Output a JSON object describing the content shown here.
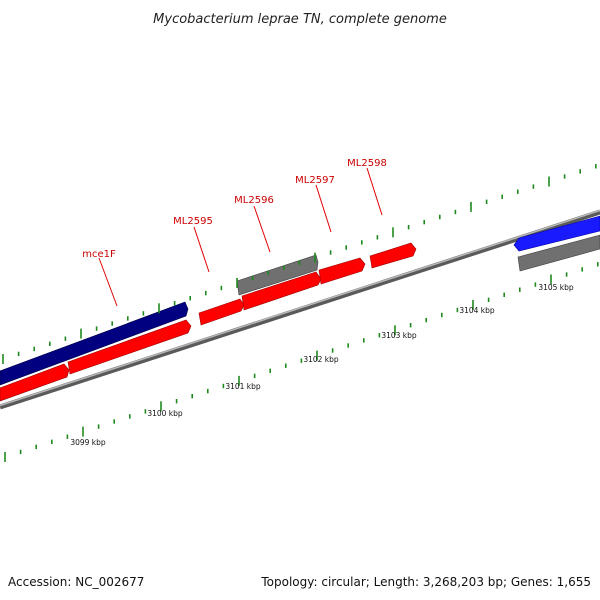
{
  "title": "Mycobacterium leprae TN, complete genome",
  "footer": {
    "accession": "Accession: NC_002677",
    "summary": "Topology: circular; Length: 3,268,203 bp; Genes: 1,655"
  },
  "colors": {
    "forward_gene": "#ff0000",
    "forward_gene_dark": "#000080",
    "reverse_gene_blue": "#1a1aff",
    "pseudo_gene": "#707070",
    "backbone": "#8c8c8c",
    "tick": "#1e8a1e",
    "label": "#cc0000"
  },
  "gene_labels": [
    {
      "text": "mce1F"
    },
    {
      "text": "ML2595"
    },
    {
      "text": "ML2596"
    },
    {
      "text": "ML2597"
    },
    {
      "text": "ML2598"
    }
  ],
  "scale_labels": [
    "3099 kbp",
    "3100 kbp",
    "3101 kbp",
    "3102 kbp",
    "3103 kbp",
    "3104 kbp",
    "3105 kbp"
  ]
}
